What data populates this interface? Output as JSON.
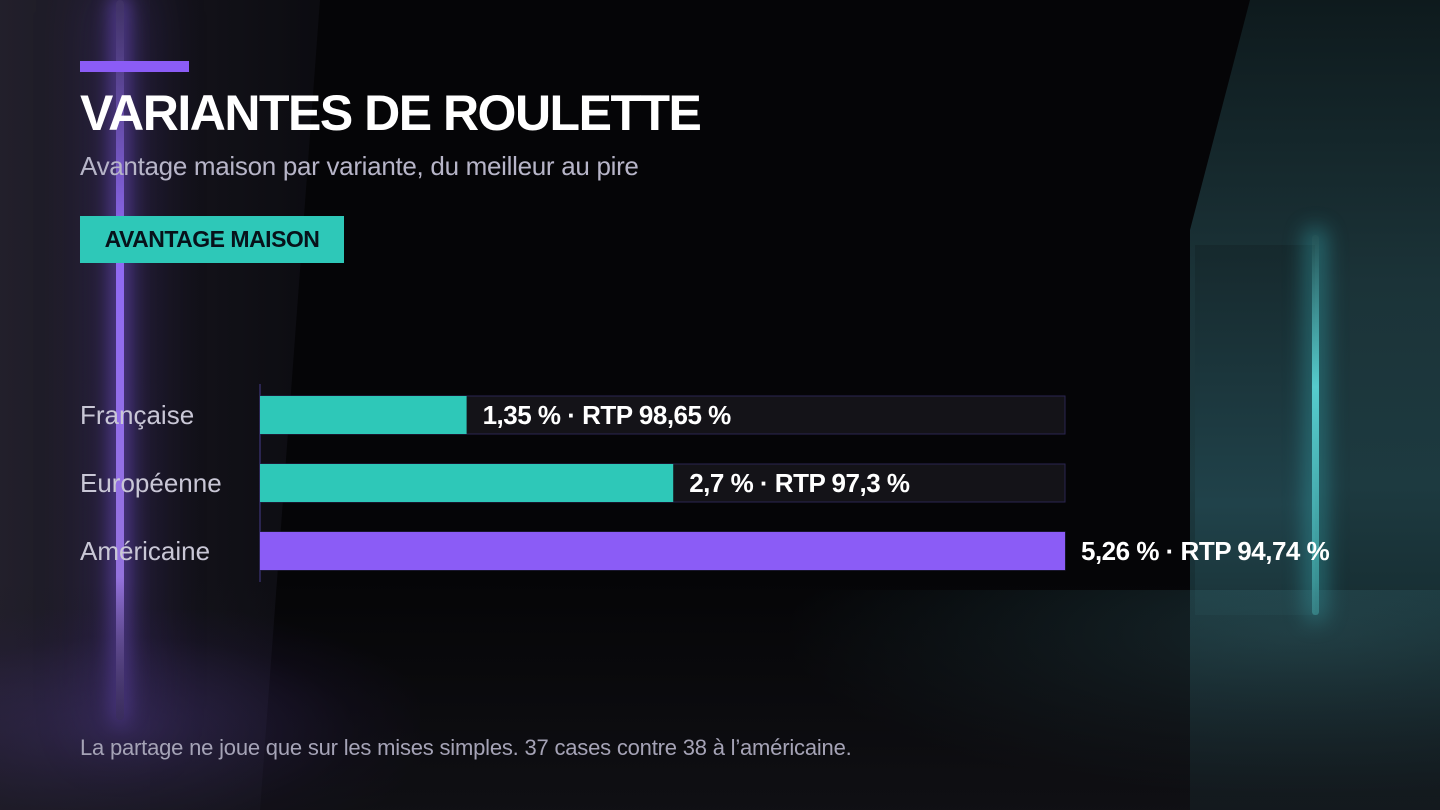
{
  "header": {
    "title": "VARIANTES DE ROULETTE",
    "subtitle": "Avantage maison par variante, du meilleur au pire",
    "badge": "AVANTAGE MAISON"
  },
  "footnote": "La partage ne joue que sur les mises simples. 37 cases contre 38 à l’américaine.",
  "colors": {
    "accent": "#8b5cf6",
    "teal": "#2ec8b8",
    "track": "#141318",
    "track_border": "#2a2550"
  },
  "chart_data": {
    "type": "bar",
    "orientation": "horizontal",
    "title": "",
    "xlim": [
      0,
      5.26
    ],
    "categories": [
      "Française",
      "Européenne",
      "Américaine"
    ],
    "values": [
      1.35,
      2.7,
      5.26
    ],
    "rtp": [
      98.65,
      97.3,
      94.74
    ],
    "value_labels": [
      "1,35 % · RTP 98,65 %",
      "2,7 % · RTP 97,3 %",
      "5,26 % · RTP 94,74 %"
    ],
    "bar_colors": [
      "#2ec8b8",
      "#2ec8b8",
      "#8b5cf6"
    ],
    "grid": false,
    "legend": "none"
  }
}
